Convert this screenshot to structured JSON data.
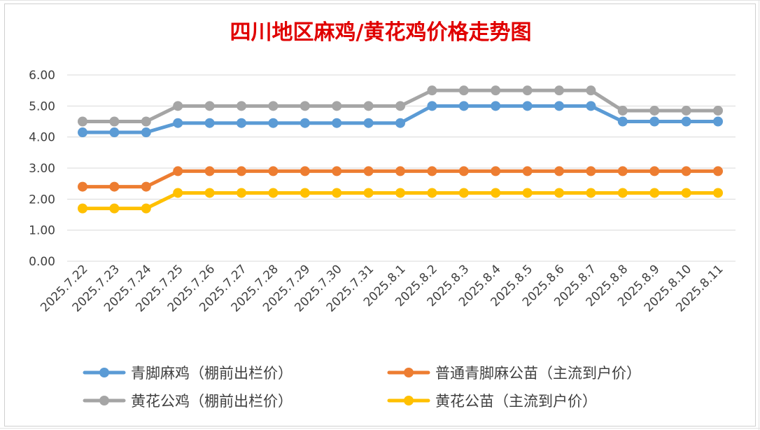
{
  "chart_data": {
    "type": "line",
    "title": "四川地区麻鸡/黄花鸡价格走势图",
    "xlabel": "",
    "ylabel": "",
    "ylim": [
      0,
      6
    ],
    "yticks": [
      "0.00",
      "1.00",
      "2.00",
      "3.00",
      "4.00",
      "5.00",
      "6.00"
    ],
    "grid": true,
    "legend_position": "bottom",
    "categories": [
      "2025.7.22",
      "2025.7.23",
      "2025.7.24",
      "2025.7.25",
      "2025.7.26",
      "2025.7.27",
      "2025.7.28",
      "2025.7.29",
      "2025.7.30",
      "2025.7.31",
      "2025.8.1",
      "2025.8.2",
      "2025.8.3",
      "2025.8.4",
      "2025.8.5",
      "2025.8.6",
      "2025.8.7",
      "2025.8.8",
      "2025.8.9",
      "2025.8.10",
      "2025.8.11"
    ],
    "series": [
      {
        "name": "青脚麻鸡（棚前出栏价）",
        "color": "#5b9bd5",
        "values": [
          4.15,
          4.15,
          4.15,
          4.45,
          4.45,
          4.45,
          4.45,
          4.45,
          4.45,
          4.45,
          4.45,
          5.0,
          5.0,
          5.0,
          5.0,
          5.0,
          5.0,
          4.5,
          4.5,
          4.5,
          4.5
        ]
      },
      {
        "name": "普通青脚麻公苗（主流到户价）",
        "color": "#ed7d31",
        "values": [
          2.4,
          2.4,
          2.4,
          2.9,
          2.9,
          2.9,
          2.9,
          2.9,
          2.9,
          2.9,
          2.9,
          2.9,
          2.9,
          2.9,
          2.9,
          2.9,
          2.9,
          2.9,
          2.9,
          2.9,
          2.9
        ]
      },
      {
        "name": "黄花公鸡（棚前出栏价）",
        "color": "#a5a5a5",
        "values": [
          4.5,
          4.5,
          4.5,
          5.0,
          5.0,
          5.0,
          5.0,
          5.0,
          5.0,
          5.0,
          5.0,
          5.5,
          5.5,
          5.5,
          5.5,
          5.5,
          5.5,
          4.85,
          4.85,
          4.85,
          4.85
        ]
      },
      {
        "name": "黄花公苗（主流到户价）",
        "color": "#ffc000",
        "values": [
          1.7,
          1.7,
          1.7,
          2.2,
          2.2,
          2.2,
          2.2,
          2.2,
          2.2,
          2.2,
          2.2,
          2.2,
          2.2,
          2.2,
          2.2,
          2.2,
          2.2,
          2.2,
          2.2,
          2.2,
          2.2
        ]
      }
    ]
  }
}
